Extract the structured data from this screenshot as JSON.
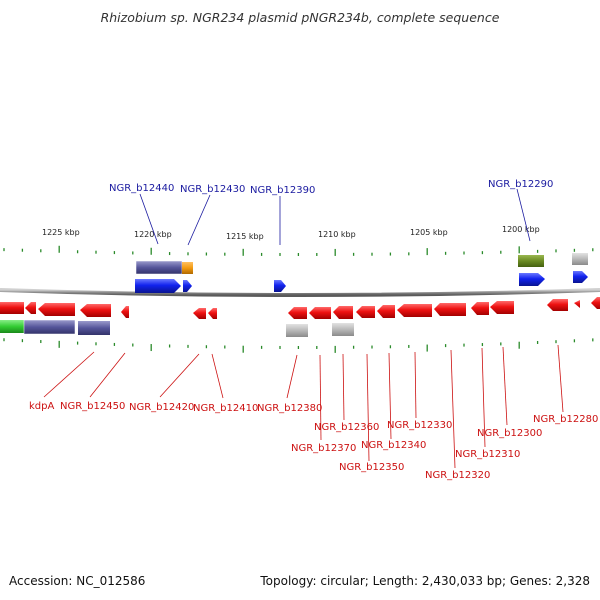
{
  "title": "Rhizobium sp. NGR234 plasmid pNGR234b, complete sequence",
  "footer": {
    "accession": "Accession: NC_012586",
    "summary": "Topology: circular; Length: 2,430,033 bp; Genes: 2,328"
  },
  "scale_labels": [
    "1225 kbp",
    "1220 kbp",
    "1215 kbp",
    "1210 kbp",
    "1205 kbp",
    "1200 kbp"
  ],
  "top_gene_labels": [
    "NGR_b12440",
    "NGR_b12430",
    "NGR_b12390",
    "NGR_b12290"
  ],
  "bottom_gene_labels": [
    "kdpA",
    "NGR_b12450",
    "NGR_b12420",
    "NGR_b12410",
    "NGR_b12380",
    "NGR_b12370",
    "NGR_b12360",
    "NGR_b12350",
    "NGR_b12340",
    "NGR_b12330",
    "NGR_b12320",
    "NGR_b12310",
    "NGR_b12300",
    "NGR_b12280"
  ],
  "colors": {
    "reverse_gene": "#ee1111",
    "forward_gene": "#1122ee",
    "purple_feature": "#55559a",
    "orange_feature": "#f39a10",
    "green_feature": "#6a8a22",
    "bright_green_feature": "#33cc33",
    "gray_feature": "#b8b8b8",
    "tick": "#2a8a2a",
    "backbone": "#8a8a8a"
  }
}
